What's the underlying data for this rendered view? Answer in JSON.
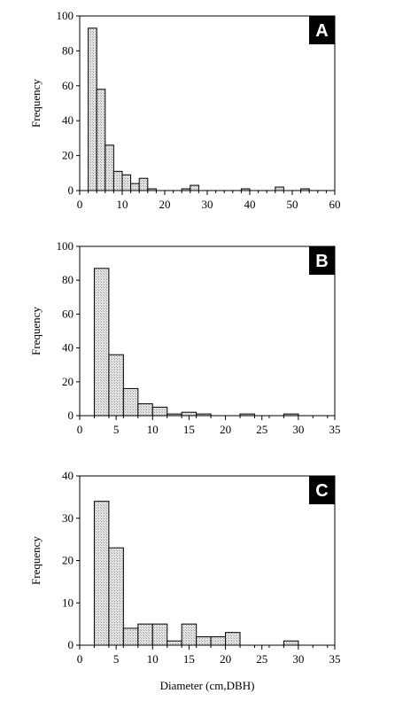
{
  "chart_data": [
    {
      "type": "bar",
      "panel": "A",
      "ylabel": "Frequency",
      "xlim": [
        0,
        60
      ],
      "ylim": [
        0,
        100
      ],
      "xticks": [
        0,
        10,
        20,
        30,
        40,
        50,
        60
      ],
      "yticks": [
        0,
        20,
        40,
        60,
        80,
        100
      ],
      "bin_width": 2,
      "bins": [
        {
          "x0": 2,
          "value": 93
        },
        {
          "x0": 4,
          "value": 58
        },
        {
          "x0": 6,
          "value": 26
        },
        {
          "x0": 8,
          "value": 11
        },
        {
          "x0": 10,
          "value": 9
        },
        {
          "x0": 12,
          "value": 4
        },
        {
          "x0": 14,
          "value": 7
        },
        {
          "x0": 16,
          "value": 1
        },
        {
          "x0": 24,
          "value": 1
        },
        {
          "x0": 26,
          "value": 3
        },
        {
          "x0": 38,
          "value": 1
        },
        {
          "x0": 46,
          "value": 2
        },
        {
          "x0": 52,
          "value": 1
        }
      ]
    },
    {
      "type": "bar",
      "panel": "B",
      "ylabel": "Frequency",
      "xlim": [
        0,
        35
      ],
      "ylim": [
        0,
        100
      ],
      "xticks": [
        0,
        5,
        10,
        15,
        20,
        25,
        30,
        35
      ],
      "yticks": [
        0,
        20,
        40,
        60,
        80,
        100
      ],
      "bin_width": 2,
      "bins": [
        {
          "x0": 2,
          "value": 87
        },
        {
          "x0": 4,
          "value": 36
        },
        {
          "x0": 6,
          "value": 16
        },
        {
          "x0": 8,
          "value": 7
        },
        {
          "x0": 10,
          "value": 5
        },
        {
          "x0": 12,
          "value": 1
        },
        {
          "x0": 14,
          "value": 2
        },
        {
          "x0": 16,
          "value": 1
        },
        {
          "x0": 22,
          "value": 1
        },
        {
          "x0": 28,
          "value": 1
        }
      ]
    },
    {
      "type": "bar",
      "panel": "C",
      "ylabel": "Frequency",
      "xlabel": "Diameter (cm,DBH)",
      "xlim": [
        0,
        35
      ],
      "ylim": [
        0,
        40
      ],
      "xticks": [
        0,
        5,
        10,
        15,
        20,
        25,
        30,
        35
      ],
      "yticks": [
        0,
        10,
        20,
        30,
        40
      ],
      "bin_width": 2,
      "bins": [
        {
          "x0": 2,
          "value": 34
        },
        {
          "x0": 4,
          "value": 23
        },
        {
          "x0": 6,
          "value": 4
        },
        {
          "x0": 8,
          "value": 5
        },
        {
          "x0": 10,
          "value": 5
        },
        {
          "x0": 12,
          "value": 1
        },
        {
          "x0": 14,
          "value": 5
        },
        {
          "x0": 16,
          "value": 2
        },
        {
          "x0": 18,
          "value": 2
        },
        {
          "x0": 20,
          "value": 3
        },
        {
          "x0": 28,
          "value": 1
        }
      ]
    }
  ]
}
